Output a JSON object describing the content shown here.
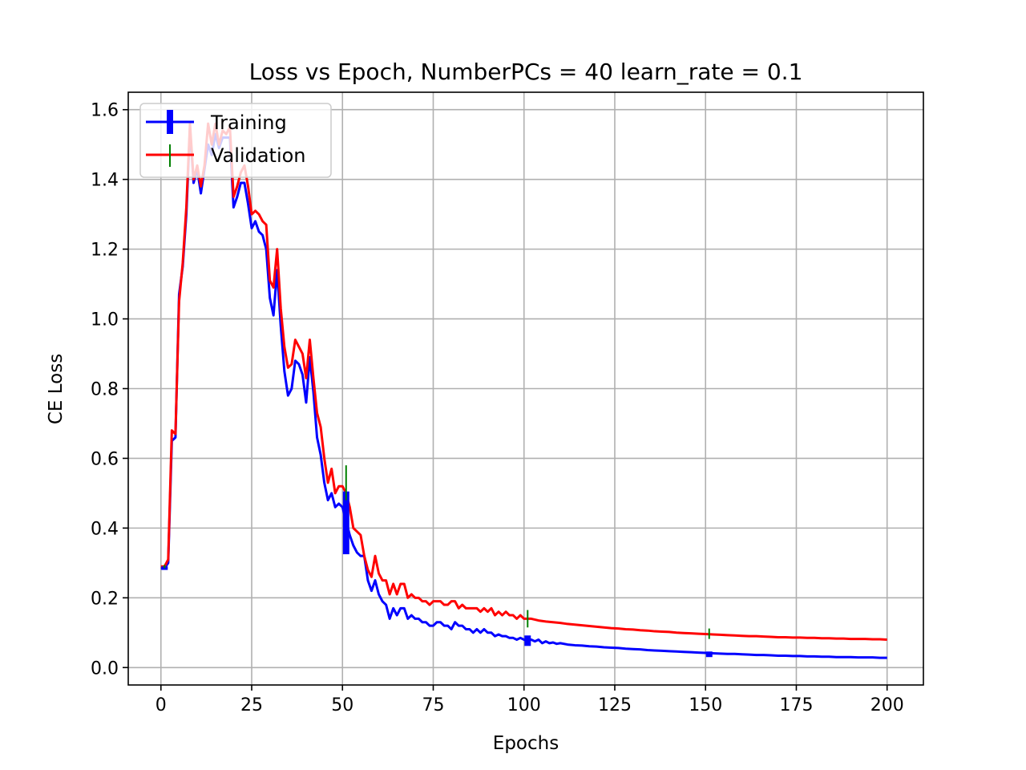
{
  "chart_data": {
    "type": "line",
    "title": "Loss vs Epoch, NumberPCs = 40 learn_rate = 0.1",
    "xlabel": "Epochs",
    "ylabel": "CE Loss",
    "xlim": [
      -9,
      210
    ],
    "ylim": [
      -0.05,
      1.65
    ],
    "xticks": [
      0,
      25,
      50,
      75,
      100,
      125,
      150,
      175,
      200
    ],
    "yticks": [
      0.0,
      0.2,
      0.4,
      0.6,
      0.8,
      1.0,
      1.2,
      1.4,
      1.6
    ],
    "ytick_labels": [
      "0.0",
      "0.2",
      "0.4",
      "0.6",
      "0.8",
      "1.0",
      "1.2",
      "1.4",
      "1.6"
    ],
    "grid": true,
    "legend_position": "upper-left",
    "series": [
      {
        "name": "Training",
        "color": "#0000ff",
        "errorbars": [
          {
            "x": 1,
            "y": 0.285,
            "err": 0.005
          },
          {
            "x": 51,
            "y": 0.415,
            "err": 0.09
          },
          {
            "x": 101,
            "y": 0.077,
            "err": 0.015
          },
          {
            "x": 151,
            "y": 0.038,
            "err": 0.008
          }
        ],
        "points": [
          [
            0,
            0.285
          ],
          [
            1,
            0.285
          ],
          [
            2,
            0.3
          ],
          [
            3,
            0.65
          ],
          [
            4,
            0.66
          ],
          [
            5,
            1.07
          ],
          [
            6,
            1.15
          ],
          [
            7,
            1.3
          ],
          [
            8,
            1.55
          ],
          [
            9,
            1.39
          ],
          [
            10,
            1.43
          ],
          [
            11,
            1.36
          ],
          [
            12,
            1.43
          ],
          [
            13,
            1.5
          ],
          [
            14,
            1.47
          ],
          [
            15,
            1.53
          ],
          [
            16,
            1.49
          ],
          [
            17,
            1.52
          ],
          [
            18,
            1.52
          ],
          [
            19,
            1.52
          ],
          [
            20,
            1.32
          ],
          [
            21,
            1.35
          ],
          [
            22,
            1.39
          ],
          [
            23,
            1.39
          ],
          [
            24,
            1.33
          ],
          [
            25,
            1.26
          ],
          [
            26,
            1.28
          ],
          [
            27,
            1.25
          ],
          [
            28,
            1.24
          ],
          [
            29,
            1.2
          ],
          [
            30,
            1.06
          ],
          [
            31,
            1.01
          ],
          [
            32,
            1.14
          ],
          [
            33,
            0.98
          ],
          [
            34,
            0.85
          ],
          [
            35,
            0.78
          ],
          [
            36,
            0.8
          ],
          [
            37,
            0.88
          ],
          [
            38,
            0.87
          ],
          [
            39,
            0.84
          ],
          [
            40,
            0.76
          ],
          [
            41,
            0.89
          ],
          [
            42,
            0.79
          ],
          [
            43,
            0.66
          ],
          [
            44,
            0.61
          ],
          [
            45,
            0.53
          ],
          [
            46,
            0.48
          ],
          [
            47,
            0.5
          ],
          [
            48,
            0.46
          ],
          [
            49,
            0.47
          ],
          [
            50,
            0.46
          ],
          [
            51,
            0.42
          ],
          [
            52,
            0.38
          ],
          [
            53,
            0.35
          ],
          [
            54,
            0.33
          ],
          [
            55,
            0.32
          ],
          [
            56,
            0.32
          ],
          [
            57,
            0.25
          ],
          [
            58,
            0.22
          ],
          [
            59,
            0.25
          ],
          [
            60,
            0.21
          ],
          [
            61,
            0.19
          ],
          [
            62,
            0.18
          ],
          [
            63,
            0.14
          ],
          [
            64,
            0.17
          ],
          [
            65,
            0.15
          ],
          [
            66,
            0.17
          ],
          [
            67,
            0.17
          ],
          [
            68,
            0.14
          ],
          [
            69,
            0.15
          ],
          [
            70,
            0.14
          ],
          [
            71,
            0.14
          ],
          [
            72,
            0.13
          ],
          [
            73,
            0.13
          ],
          [
            74,
            0.12
          ],
          [
            75,
            0.12
          ],
          [
            76,
            0.13
          ],
          [
            77,
            0.13
          ],
          [
            78,
            0.12
          ],
          [
            79,
            0.12
          ],
          [
            80,
            0.11
          ],
          [
            81,
            0.13
          ],
          [
            82,
            0.12
          ],
          [
            83,
            0.12
          ],
          [
            84,
            0.11
          ],
          [
            85,
            0.11
          ],
          [
            86,
            0.1
          ],
          [
            87,
            0.11
          ],
          [
            88,
            0.1
          ],
          [
            89,
            0.11
          ],
          [
            90,
            0.1
          ],
          [
            91,
            0.1
          ],
          [
            92,
            0.09
          ],
          [
            93,
            0.095
          ],
          [
            94,
            0.09
          ],
          [
            95,
            0.09
          ],
          [
            96,
            0.085
          ],
          [
            97,
            0.085
          ],
          [
            98,
            0.08
          ],
          [
            99,
            0.085
          ],
          [
            100,
            0.08
          ],
          [
            101,
            0.078
          ],
          [
            102,
            0.08
          ],
          [
            103,
            0.075
          ],
          [
            104,
            0.08
          ],
          [
            105,
            0.07
          ],
          [
            106,
            0.075
          ],
          [
            107,
            0.07
          ],
          [
            108,
            0.072
          ],
          [
            109,
            0.068
          ],
          [
            110,
            0.07
          ],
          [
            112,
            0.066
          ],
          [
            114,
            0.064
          ],
          [
            116,
            0.063
          ],
          [
            118,
            0.061
          ],
          [
            120,
            0.06
          ],
          [
            122,
            0.058
          ],
          [
            124,
            0.057
          ],
          [
            126,
            0.056
          ],
          [
            128,
            0.054
          ],
          [
            130,
            0.053
          ],
          [
            132,
            0.052
          ],
          [
            134,
            0.05
          ],
          [
            136,
            0.049
          ],
          [
            138,
            0.048
          ],
          [
            140,
            0.047
          ],
          [
            142,
            0.046
          ],
          [
            144,
            0.045
          ],
          [
            146,
            0.044
          ],
          [
            148,
            0.043
          ],
          [
            150,
            0.042
          ],
          [
            152,
            0.041
          ],
          [
            154,
            0.04
          ],
          [
            156,
            0.039
          ],
          [
            158,
            0.039
          ],
          [
            160,
            0.038
          ],
          [
            162,
            0.037
          ],
          [
            164,
            0.036
          ],
          [
            166,
            0.036
          ],
          [
            168,
            0.035
          ],
          [
            170,
            0.034
          ],
          [
            172,
            0.034
          ],
          [
            174,
            0.033
          ],
          [
            176,
            0.033
          ],
          [
            178,
            0.032
          ],
          [
            180,
            0.032
          ],
          [
            182,
            0.031
          ],
          [
            184,
            0.031
          ],
          [
            186,
            0.03
          ],
          [
            188,
            0.03
          ],
          [
            190,
            0.03
          ],
          [
            192,
            0.029
          ],
          [
            194,
            0.029
          ],
          [
            196,
            0.029
          ],
          [
            198,
            0.028
          ],
          [
            200,
            0.028
          ]
        ]
      },
      {
        "name": "Validation",
        "color": "#ff0000",
        "errorbar_color": "#008000",
        "errorbars": [
          {
            "x": 1,
            "y": 0.29,
            "err": 0.005
          },
          {
            "x": 51,
            "y": 0.53,
            "err": 0.05
          },
          {
            "x": 101,
            "y": 0.14,
            "err": 0.025
          },
          {
            "x": 151,
            "y": 0.097,
            "err": 0.015
          }
        ],
        "points": [
          [
            0,
            0.29
          ],
          [
            1,
            0.29
          ],
          [
            2,
            0.31
          ],
          [
            3,
            0.68
          ],
          [
            4,
            0.67
          ],
          [
            5,
            1.05
          ],
          [
            6,
            1.16
          ],
          [
            7,
            1.32
          ],
          [
            8,
            1.56
          ],
          [
            9,
            1.4
          ],
          [
            10,
            1.44
          ],
          [
            11,
            1.38
          ],
          [
            12,
            1.44
          ],
          [
            13,
            1.56
          ],
          [
            14,
            1.5
          ],
          [
            15,
            1.56
          ],
          [
            16,
            1.5
          ],
          [
            17,
            1.54
          ],
          [
            18,
            1.53
          ],
          [
            19,
            1.55
          ],
          [
            20,
            1.35
          ],
          [
            21,
            1.38
          ],
          [
            22,
            1.42
          ],
          [
            23,
            1.44
          ],
          [
            24,
            1.38
          ],
          [
            25,
            1.3
          ],
          [
            26,
            1.31
          ],
          [
            27,
            1.3
          ],
          [
            28,
            1.28
          ],
          [
            29,
            1.27
          ],
          [
            30,
            1.11
          ],
          [
            31,
            1.09
          ],
          [
            32,
            1.2
          ],
          [
            33,
            1.03
          ],
          [
            34,
            0.92
          ],
          [
            35,
            0.86
          ],
          [
            36,
            0.87
          ],
          [
            37,
            0.94
          ],
          [
            38,
            0.92
          ],
          [
            39,
            0.9
          ],
          [
            40,
            0.83
          ],
          [
            41,
            0.94
          ],
          [
            42,
            0.83
          ],
          [
            43,
            0.73
          ],
          [
            44,
            0.69
          ],
          [
            45,
            0.6
          ],
          [
            46,
            0.53
          ],
          [
            47,
            0.57
          ],
          [
            48,
            0.5
          ],
          [
            49,
            0.52
          ],
          [
            50,
            0.52
          ],
          [
            51,
            0.5
          ],
          [
            52,
            0.46
          ],
          [
            53,
            0.4
          ],
          [
            54,
            0.39
          ],
          [
            55,
            0.38
          ],
          [
            56,
            0.32
          ],
          [
            57,
            0.28
          ],
          [
            58,
            0.26
          ],
          [
            59,
            0.32
          ],
          [
            60,
            0.27
          ],
          [
            61,
            0.25
          ],
          [
            62,
            0.25
          ],
          [
            63,
            0.21
          ],
          [
            64,
            0.24
          ],
          [
            65,
            0.21
          ],
          [
            66,
            0.24
          ],
          [
            67,
            0.24
          ],
          [
            68,
            0.2
          ],
          [
            69,
            0.21
          ],
          [
            70,
            0.2
          ],
          [
            71,
            0.2
          ],
          [
            72,
            0.19
          ],
          [
            73,
            0.19
          ],
          [
            74,
            0.18
          ],
          [
            75,
            0.19
          ],
          [
            76,
            0.19
          ],
          [
            77,
            0.19
          ],
          [
            78,
            0.18
          ],
          [
            79,
            0.18
          ],
          [
            80,
            0.19
          ],
          [
            81,
            0.19
          ],
          [
            82,
            0.17
          ],
          [
            83,
            0.18
          ],
          [
            84,
            0.17
          ],
          [
            85,
            0.17
          ],
          [
            86,
            0.17
          ],
          [
            87,
            0.17
          ],
          [
            88,
            0.16
          ],
          [
            89,
            0.17
          ],
          [
            90,
            0.16
          ],
          [
            91,
            0.17
          ],
          [
            92,
            0.15
          ],
          [
            93,
            0.16
          ],
          [
            94,
            0.15
          ],
          [
            95,
            0.16
          ],
          [
            96,
            0.15
          ],
          [
            97,
            0.15
          ],
          [
            98,
            0.14
          ],
          [
            99,
            0.15
          ],
          [
            100,
            0.14
          ],
          [
            102,
            0.14
          ],
          [
            104,
            0.135
          ],
          [
            106,
            0.132
          ],
          [
            108,
            0.13
          ],
          [
            110,
            0.128
          ],
          [
            112,
            0.125
          ],
          [
            114,
            0.123
          ],
          [
            116,
            0.121
          ],
          [
            118,
            0.119
          ],
          [
            120,
            0.117
          ],
          [
            122,
            0.115
          ],
          [
            124,
            0.113
          ],
          [
            126,
            0.112
          ],
          [
            128,
            0.11
          ],
          [
            130,
            0.109
          ],
          [
            132,
            0.107
          ],
          [
            134,
            0.106
          ],
          [
            136,
            0.104
          ],
          [
            138,
            0.103
          ],
          [
            140,
            0.102
          ],
          [
            142,
            0.1
          ],
          [
            144,
            0.099
          ],
          [
            146,
            0.098
          ],
          [
            148,
            0.097
          ],
          [
            150,
            0.096
          ],
          [
            152,
            0.095
          ],
          [
            154,
            0.094
          ],
          [
            156,
            0.093
          ],
          [
            158,
            0.092
          ],
          [
            160,
            0.091
          ],
          [
            162,
            0.09
          ],
          [
            164,
            0.09
          ],
          [
            166,
            0.089
          ],
          [
            168,
            0.088
          ],
          [
            170,
            0.087
          ],
          [
            172,
            0.087
          ],
          [
            174,
            0.086
          ],
          [
            176,
            0.086
          ],
          [
            178,
            0.085
          ],
          [
            180,
            0.085
          ],
          [
            182,
            0.084
          ],
          [
            184,
            0.084
          ],
          [
            186,
            0.083
          ],
          [
            188,
            0.083
          ],
          [
            190,
            0.082
          ],
          [
            192,
            0.082
          ],
          [
            194,
            0.082
          ],
          [
            196,
            0.081
          ],
          [
            198,
            0.081
          ],
          [
            200,
            0.08
          ]
        ]
      }
    ]
  }
}
